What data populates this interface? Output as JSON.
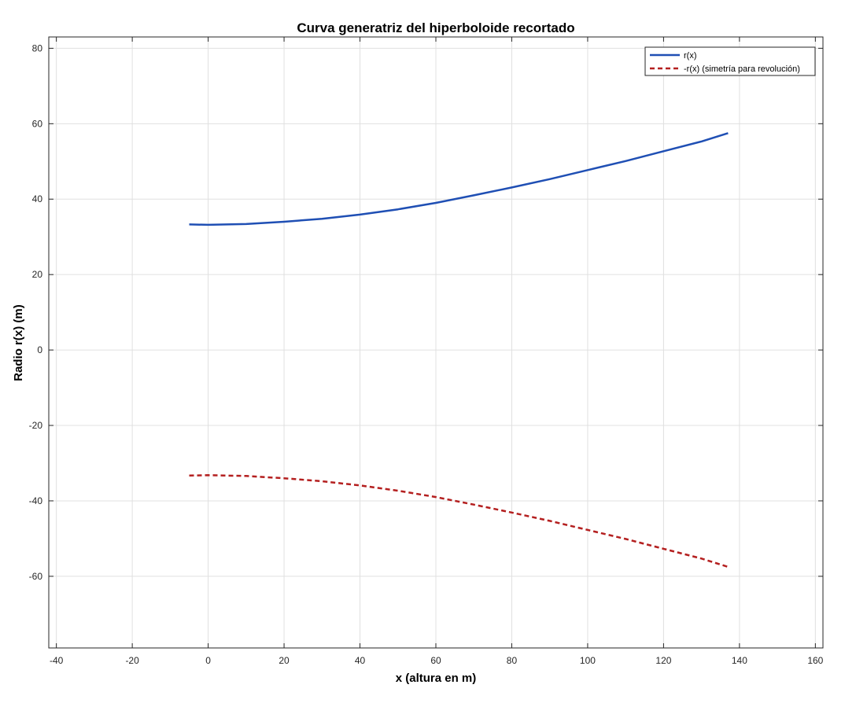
{
  "chart_data": {
    "type": "line",
    "title": "Curva generatriz del hiperboloide recortado",
    "xlabel": "x (altura en m)",
    "ylabel": "Radio r(x) (m)",
    "xlim": [
      -42,
      162
    ],
    "ylim": [
      -79,
      83
    ],
    "xticks": [
      -40,
      -20,
      0,
      20,
      40,
      60,
      80,
      100,
      120,
      140,
      160
    ],
    "yticks": [
      -60,
      -40,
      -20,
      0,
      20,
      40,
      60,
      80
    ],
    "xtick_labels": [
      "-40",
      "-20",
      "0",
      "20",
      "40",
      "60",
      "80",
      "100",
      "120",
      "140",
      "160"
    ],
    "ytick_labels": [
      "-60",
      "-40",
      "-20",
      "0",
      "20",
      "40",
      "60",
      "80"
    ],
    "grid": true,
    "legend_position": "top-right",
    "series": [
      {
        "name": "r(x)",
        "style": "solid",
        "color": "#1f4fb4",
        "x": [
          -5,
          0,
          10,
          20,
          30,
          40,
          50,
          60,
          70,
          80,
          90,
          100,
          110,
          120,
          130,
          137
        ],
        "y": [
          33.3,
          33.2,
          33.4,
          34.0,
          34.8,
          35.9,
          37.3,
          39.0,
          41.0,
          43.1,
          45.3,
          47.7,
          50.1,
          52.7,
          55.3,
          57.5
        ]
      },
      {
        "name": "-r(x) (simetría para revolución)",
        "style": "dashed",
        "color": "#b41f1f",
        "x": [
          -5,
          0,
          10,
          20,
          30,
          40,
          50,
          60,
          70,
          80,
          90,
          100,
          110,
          120,
          130,
          137
        ],
        "y": [
          -33.3,
          -33.2,
          -33.4,
          -34.0,
          -34.8,
          -35.9,
          -37.3,
          -39.0,
          -41.0,
          -43.1,
          -45.3,
          -47.7,
          -50.1,
          -52.7,
          -55.3,
          -57.5
        ]
      }
    ]
  }
}
